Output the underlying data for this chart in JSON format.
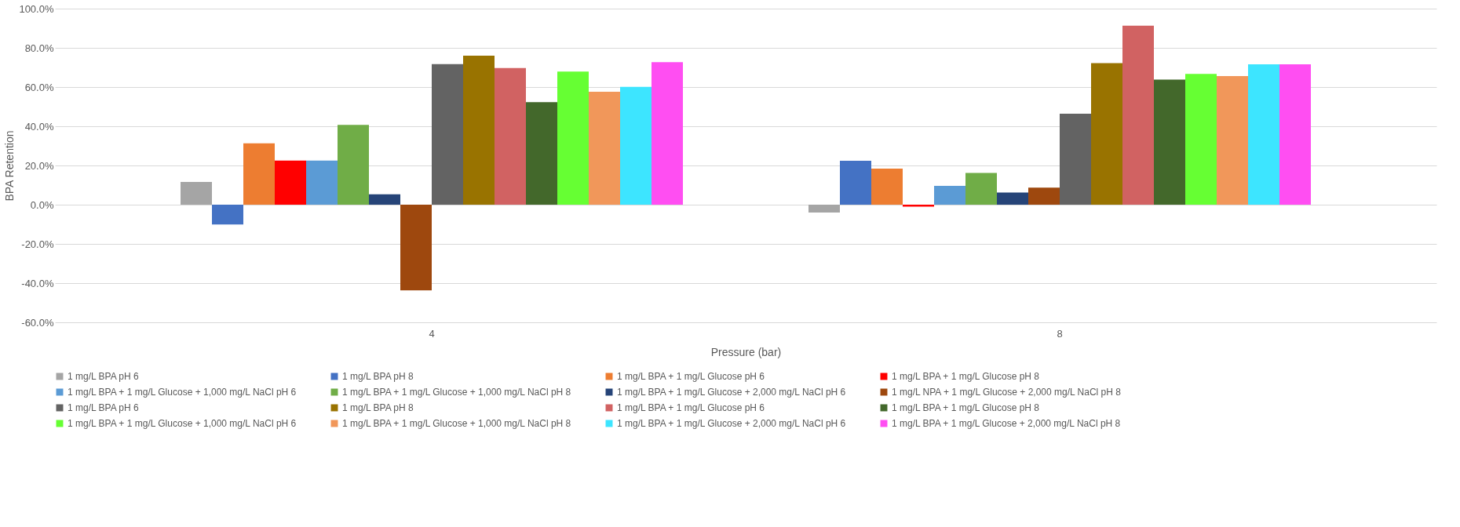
{
  "chart_data": {
    "type": "bar",
    "xlabel": "Pressure (bar)",
    "ylabel": "BPA Retention",
    "categories": [
      "4",
      "8"
    ],
    "ylim": [
      -60,
      100
    ],
    "yticks": [
      {
        "value": -60,
        "label": "-60.0%"
      },
      {
        "value": -40,
        "label": "-40.0%"
      },
      {
        "value": -20,
        "label": "-20.0%"
      },
      {
        "value": 0,
        "label": "0.0%"
      },
      {
        "value": 20,
        "label": "20.0%"
      },
      {
        "value": 40,
        "label": "40.0%"
      },
      {
        "value": 60,
        "label": "60.0%"
      },
      {
        "value": 80,
        "label": "80.0%"
      },
      {
        "value": 100,
        "label": "100.0%"
      }
    ],
    "grid": "y",
    "legend": "bottom",
    "series": [
      {
        "name": "1 mg/L BPA pH 6",
        "color": "#a5a5a5",
        "values": [
          11.6,
          -4
        ]
      },
      {
        "name": "1 mg/L BPA pH 8",
        "color": "#4472c4",
        "values": [
          -10.1,
          22.4
        ]
      },
      {
        "name": "1 mg/L BPA + 1 mg/L Glucose pH 6",
        "color": "#ed7d31",
        "values": [
          31.3,
          18.4
        ]
      },
      {
        "name": "1 mg/L BPA + 1 mg/L Glucose pH 8",
        "color": "#ff0000",
        "values": [
          22.5,
          -1
        ]
      },
      {
        "name": "1 mg/L BPA + 1 mg/L Glucose + 1,000 mg/L NaCl pH 6",
        "color": "#5b9bd5",
        "values": [
          22.5,
          9.6
        ]
      },
      {
        "name": "1 mg/L BPA + 1 mg/L Glucose + 1,000 mg/L NaCl pH 8",
        "color": "#70ad47",
        "values": [
          40.7,
          16.2
        ]
      },
      {
        "name": "1 mg/L BPA + 1 mg/L Glucose + 2,000 mg/L NaCl pH 6",
        "color": "#264478",
        "values": [
          5.3,
          6.2
        ]
      },
      {
        "name": "1 mg/L NPA + 1 mg/L Glucose + 2,000 mg/L NaCl pH 8",
        "color": "#9e480e",
        "values": [
          -43.7,
          8.7
        ]
      },
      {
        "name": "1 mg/L BPA pH 6",
        "color": "#636363",
        "values": [
          71.7,
          46.4
        ]
      },
      {
        "name": "1 mg/L BPA pH 8",
        "color": "#997300",
        "values": [
          76,
          72.2
        ]
      },
      {
        "name": "1 mg/L BPA + 1 mg/L Glucose pH 6",
        "color": "#d16262",
        "values": [
          69.7,
          91.3
        ]
      },
      {
        "name": "1 mg/L BPA + 1 mg/L Glucose pH 8",
        "color": "#43682b",
        "values": [
          52.3,
          63.8
        ]
      },
      {
        "name": "1 mg/L BPA + 1 mg/L Glucose + 1,000 mg/L NaCl pH 6",
        "color": "#66ff33",
        "values": [
          67.9,
          66.7
        ]
      },
      {
        "name": "1 mg/L BPA + 1 mg/L Glucose + 1,000 mg/L NaCl pH 8",
        "color": "#f1975a",
        "values": [
          57.6,
          65.6
        ]
      },
      {
        "name": "1 mg/L BPA + 1 mg/L Glucose + 2,000 mg/L NaCl pH 6",
        "color": "#3de5ff",
        "values": [
          60.1,
          71.6
        ]
      },
      {
        "name": "1 mg/L BPA + 1 mg/L Glucose + 2,000 mg/L NaCl pH 8",
        "color": "#ff4ef2",
        "values": [
          72.7,
          71.6
        ]
      }
    ]
  }
}
